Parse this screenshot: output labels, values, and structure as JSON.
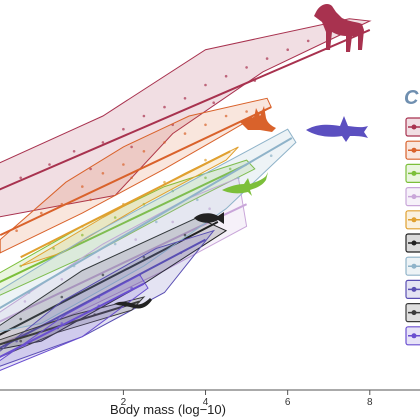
{
  "chart_data": {
    "type": "scatter",
    "xlabel": "Body mass (log−10)",
    "ylabel": "",
    "xlim": [
      -1.2,
      8.2
    ],
    "ylim": [
      -2.6,
      5.6
    ],
    "x_ticks": [
      2,
      4,
      6,
      8
    ],
    "legend": {
      "title_fragment": "C",
      "placement": "right",
      "entries": 10
    },
    "series": [
      {
        "color": "#a8324f",
        "hull": [
          [
            -1.1,
            2.1
          ],
          [
            1.5,
            3.2
          ],
          [
            4.0,
            4.7
          ],
          [
            7.5,
            5.4
          ],
          [
            8.0,
            5.35
          ],
          [
            7.2,
            5.0
          ],
          [
            5.4,
            4.2
          ],
          [
            3.2,
            2.8
          ],
          [
            1.8,
            1.4
          ],
          [
            -1.1,
            0.9
          ]
        ],
        "line": [
          [
            -1.1,
            1.5
          ],
          [
            8.0,
            5.15
          ]
        ],
        "points": [
          [
            -0.5,
            1.8
          ],
          [
            0.2,
            2.1
          ],
          [
            0.8,
            2.4
          ],
          [
            1.5,
            2.6
          ],
          [
            2.0,
            2.9
          ],
          [
            2.5,
            3.2
          ],
          [
            3.0,
            3.4
          ],
          [
            3.5,
            3.6
          ],
          [
            4.0,
            3.9
          ],
          [
            4.5,
            4.1
          ],
          [
            5.0,
            4.3
          ],
          [
            5.5,
            4.5
          ],
          [
            6.0,
            4.7
          ],
          [
            6.5,
            4.9
          ],
          [
            7.0,
            5.0
          ],
          [
            2.2,
            2.5
          ],
          [
            3.2,
            3.0
          ],
          [
            1.2,
            2.0
          ],
          [
            4.2,
            3.5
          ],
          [
            5.2,
            4.0
          ]
        ]
      },
      {
        "color": "#d9622b",
        "hull": [
          [
            -1.0,
            0.4
          ],
          [
            0.6,
            1.7
          ],
          [
            2.0,
            2.5
          ],
          [
            3.6,
            3.2
          ],
          [
            5.5,
            3.6
          ],
          [
            5.6,
            3.4
          ],
          [
            4.5,
            2.8
          ],
          [
            3.0,
            2.0
          ],
          [
            1.0,
            1.0
          ],
          [
            -1.0,
            0.1
          ]
        ],
        "line": [
          [
            -1.0,
            0.5
          ],
          [
            5.6,
            3.4
          ]
        ],
        "points": [
          [
            -0.6,
            0.6
          ],
          [
            0.0,
            1.0
          ],
          [
            0.5,
            1.2
          ],
          [
            1.0,
            1.6
          ],
          [
            1.5,
            1.9
          ],
          [
            2.0,
            2.1
          ],
          [
            2.5,
            2.4
          ],
          [
            3.0,
            2.6
          ],
          [
            3.5,
            2.8
          ],
          [
            4.0,
            3.0
          ],
          [
            4.5,
            3.2
          ],
          [
            5.0,
            3.3
          ],
          [
            2.2,
            1.8
          ],
          [
            1.2,
            1.3
          ]
        ]
      },
      {
        "color": "#7cbf3a",
        "hull": [
          [
            -1.1,
            -0.4
          ],
          [
            1.0,
            0.7
          ],
          [
            3.0,
            1.6
          ],
          [
            5.0,
            2.2
          ],
          [
            5.2,
            2.0
          ],
          [
            3.5,
            1.2
          ],
          [
            1.5,
            0.2
          ],
          [
            -1.1,
            -0.9
          ]
        ],
        "line": [
          [
            -1.1,
            -0.6
          ],
          [
            5.0,
            2.1
          ]
        ],
        "points": [
          [
            -0.5,
            -0.2
          ],
          [
            0.3,
            0.2
          ],
          [
            1.0,
            0.5
          ],
          [
            1.8,
            0.9
          ],
          [
            2.5,
            1.2
          ],
          [
            3.2,
            1.5
          ],
          [
            4.0,
            1.8
          ],
          [
            4.6,
            2.0
          ]
        ]
      },
      {
        "color": "#c9a6d9",
        "hull": [
          [
            -1.1,
            -1.3
          ],
          [
            1.5,
            0.3
          ],
          [
            3.5,
            1.3
          ],
          [
            4.8,
            1.8
          ],
          [
            5.0,
            0.7
          ],
          [
            3.0,
            -0.3
          ],
          [
            1.0,
            -1.2
          ],
          [
            -1.1,
            -2.0
          ]
        ],
        "line": [
          [
            -1.1,
            -1.5
          ],
          [
            5.0,
            1.2
          ]
        ],
        "points": [
          [
            -0.4,
            -1.0
          ],
          [
            0.5,
            -0.5
          ],
          [
            1.4,
            0.0
          ],
          [
            2.3,
            0.4
          ],
          [
            3.2,
            0.8
          ],
          [
            4.1,
            1.1
          ]
        ]
      },
      {
        "color": "#e0a030",
        "hull": [
          [
            -0.5,
            -0.2
          ],
          [
            1.5,
            0.9
          ],
          [
            3.5,
            1.9
          ],
          [
            4.8,
            2.5
          ],
          [
            4.5,
            2.2
          ],
          [
            2.5,
            1.2
          ],
          [
            0.5,
            0.1
          ]
        ],
        "line": [
          [
            -0.5,
            0.0
          ],
          [
            4.6,
            2.4
          ]
        ],
        "points": [
          [
            0.2,
            0.3
          ],
          [
            1.0,
            0.7
          ],
          [
            2.0,
            1.2
          ],
          [
            3.0,
            1.7
          ],
          [
            4.0,
            2.2
          ]
        ]
      },
      {
        "color": "#222222",
        "hull": [
          [
            -1.1,
            -1.6
          ],
          [
            1.0,
            -0.3
          ],
          [
            3.8,
            0.9
          ],
          [
            4.5,
            0.6
          ],
          [
            2.5,
            -0.6
          ],
          [
            0.0,
            -1.9
          ],
          [
            -1.1,
            -2.1
          ]
        ],
        "line": [
          [
            -1.1,
            -1.8
          ],
          [
            4.3,
            0.8
          ]
        ],
        "points": [
          [
            -0.5,
            -1.4
          ],
          [
            0.5,
            -0.9
          ],
          [
            1.5,
            -0.4
          ],
          [
            2.5,
            0.0
          ],
          [
            3.5,
            0.5
          ]
        ]
      },
      {
        "color": "#8fb3c9",
        "hull": [
          [
            -1.1,
            -0.8
          ],
          [
            1.2,
            0.5
          ],
          [
            3.2,
            1.5
          ],
          [
            6.0,
            2.9
          ],
          [
            6.2,
            2.6
          ],
          [
            4.5,
            1.1
          ],
          [
            2.5,
            -0.2
          ],
          [
            0.0,
            -1.5
          ],
          [
            -1.1,
            -1.7
          ]
        ],
        "line": [
          [
            -1.1,
            -1.2
          ],
          [
            6.1,
            2.7
          ]
        ],
        "points": [
          [
            -0.3,
            -0.8
          ],
          [
            0.8,
            -0.2
          ],
          [
            1.8,
            0.3
          ],
          [
            2.8,
            0.8
          ],
          [
            3.8,
            1.3
          ],
          [
            4.8,
            1.8
          ],
          [
            5.6,
            2.3
          ]
        ]
      },
      {
        "color": "#5a4fb3",
        "hull": [
          [
            -1.1,
            -2.2
          ],
          [
            0.5,
            -1.0
          ],
          [
            2.8,
            0.2
          ],
          [
            4.2,
            0.6
          ],
          [
            3.0,
            -0.8
          ],
          [
            1.0,
            -1.8
          ],
          [
            -1.1,
            -2.5
          ]
        ],
        "line": [
          [
            -1.1,
            -2.1
          ],
          [
            4.0,
            0.4
          ]
        ],
        "points": [
          [
            -0.6,
            -1.9
          ],
          [
            0.4,
            -1.4
          ],
          [
            1.4,
            -0.9
          ],
          [
            2.4,
            -0.4
          ],
          [
            3.4,
            0.1
          ]
        ]
      },
      {
        "color": "#3b3b3b",
        "hull": [
          [
            -1.1,
            -1.9
          ],
          [
            0.8,
            -1.3
          ],
          [
            2.5,
            -0.9
          ],
          [
            2.2,
            -1.2
          ],
          [
            0.4,
            -1.7
          ],
          [
            -1.1,
            -2.3
          ]
        ],
        "line": [
          [
            -1.1,
            -2.0
          ],
          [
            2.4,
            -1.0
          ]
        ],
        "points": [
          [
            -0.5,
            -1.9
          ],
          [
            0.4,
            -1.6
          ],
          [
            1.3,
            -1.3
          ],
          [
            2.0,
            -1.1
          ]
        ]
      },
      {
        "color": "#6a4fd0",
        "hull": [
          [
            -1.1,
            -2.4
          ],
          [
            0.6,
            -1.3
          ],
          [
            2.4,
            -0.4
          ],
          [
            2.6,
            -0.7
          ],
          [
            1.0,
            -1.8
          ],
          [
            -1.1,
            -2.6
          ]
        ],
        "line": [
          [
            -1.1,
            -2.3
          ],
          [
            2.5,
            -0.6
          ]
        ],
        "points": [
          [
            -0.4,
            -2.0
          ],
          [
            0.5,
            -1.5
          ],
          [
            1.4,
            -1.1
          ],
          [
            2.2,
            -0.7
          ]
        ]
      }
    ]
  },
  "colors": {
    "axis": "#555555",
    "legend_title": "#6f8fb0",
    "horse": "#a8324f",
    "fox": "#d9622b",
    "shark": "#5b4fc0",
    "lizard": "#7cbf3a",
    "fish": "#222222",
    "eel": "#222222"
  },
  "silhouettes": [
    "horse-silhouette",
    "fox-silhouette",
    "shark-silhouette",
    "lizard-silhouette",
    "fish-silhouette",
    "eel-silhouette"
  ]
}
